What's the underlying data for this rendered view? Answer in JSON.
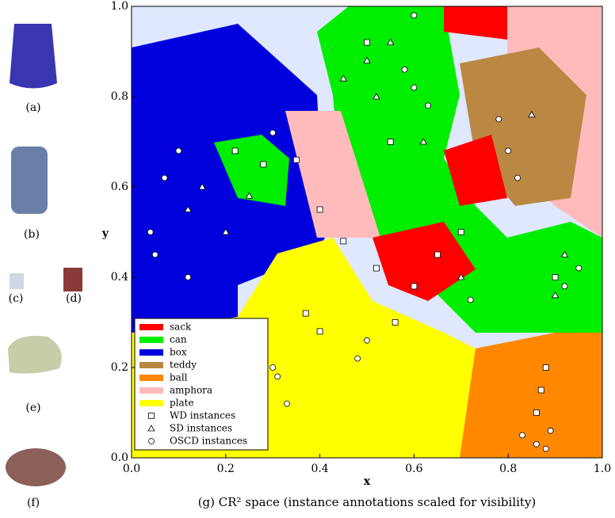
{
  "chart_data": {
    "type": "scatter",
    "xlabel": "x",
    "ylabel": "y",
    "caption": "(g) CR² space (instance annotations scaled for visibility)",
    "panels": [
      "(a)",
      "(b)",
      "(c)",
      "(d)",
      "(e)",
      "(f)"
    ],
    "xlim": [
      0,
      1
    ],
    "ylim": [
      0,
      1
    ],
    "xticks": [
      {
        "value": 0,
        "label": "0.0"
      },
      0.2,
      0.4,
      0.6,
      0.8,
      {
        "value": 1,
        "label": "1.0"
      }
    ],
    "yticks": [
      {
        "value": 0,
        "label": "0.0"
      },
      0.2,
      0.4,
      0.6,
      0.8,
      {
        "value": 1,
        "label": "1.0"
      }
    ],
    "classes": [
      {
        "name": "sack",
        "color": "#ff0000"
      },
      {
        "name": "can",
        "color": "#00ee00"
      },
      {
        "name": "box",
        "color": "#0000dd"
      },
      {
        "name": "teddy",
        "color": "#bb8844"
      },
      {
        "name": "ball",
        "color": "#ff8800"
      },
      {
        "name": "amphora",
        "color": "#ffbbbb"
      },
      {
        "name": "plate",
        "color": "#ffff00"
      }
    ],
    "series": [
      {
        "name": "WD instances",
        "marker": "square",
        "color": "#ffffff",
        "x": [
          0.22,
          0.28,
          0.35,
          0.4,
          0.45,
          0.52,
          0.56,
          0.6,
          0.65,
          0.7,
          0.88,
          0.87,
          0.86,
          0.9,
          0.4,
          0.37,
          0.5,
          0.55
        ],
        "values": [
          0.68,
          0.65,
          0.66,
          0.55,
          0.48,
          0.42,
          0.3,
          0.38,
          0.45,
          0.5,
          0.2,
          0.15,
          0.1,
          0.4,
          0.28,
          0.32,
          0.92,
          0.7
        ]
      },
      {
        "name": "SD instances",
        "marker": "triangle",
        "color": "#ffffff",
        "x": [
          0.12,
          0.15,
          0.2,
          0.25,
          0.5,
          0.52,
          0.55,
          0.62,
          0.45,
          0.7,
          0.9,
          0.85,
          0.92
        ],
        "values": [
          0.55,
          0.6,
          0.5,
          0.58,
          0.88,
          0.8,
          0.92,
          0.7,
          0.84,
          0.4,
          0.36,
          0.76,
          0.45
        ]
      },
      {
        "name": "OSCD instances",
        "marker": "circle",
        "color": "#ffffff",
        "x": [
          0.04,
          0.07,
          0.1,
          0.05,
          0.12,
          0.3,
          0.31,
          0.33,
          0.3,
          0.5,
          0.48,
          0.83,
          0.86,
          0.89,
          0.88,
          0.78,
          0.8,
          0.82,
          0.6,
          0.63,
          0.58,
          0.92,
          0.95,
          0.72,
          0.6
        ],
        "values": [
          0.5,
          0.62,
          0.68,
          0.45,
          0.4,
          0.2,
          0.18,
          0.12,
          0.72,
          0.26,
          0.22,
          0.05,
          0.03,
          0.06,
          0.02,
          0.75,
          0.68,
          0.62,
          0.82,
          0.78,
          0.86,
          0.38,
          0.42,
          0.35,
          0.98
        ]
      }
    ]
  }
}
